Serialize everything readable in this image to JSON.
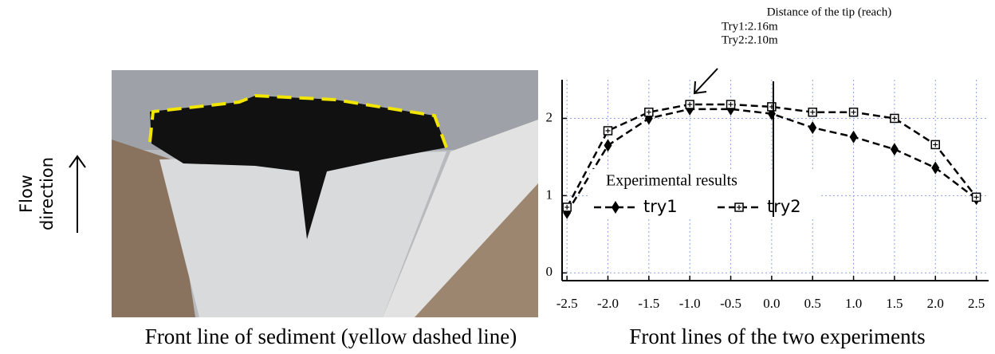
{
  "chart_data": {
    "type": "line",
    "annotation": [
      "Distance of the tip (reach)",
      "Try1:2.16m",
      "Try2:2.10m"
    ],
    "legend_title": "Experimental results",
    "x": [
      -2.5,
      -2.0,
      -1.5,
      -1.0,
      -0.5,
      0.0,
      0.5,
      1.0,
      1.5,
      2.0,
      2.5
    ],
    "series": [
      {
        "name": "try1",
        "color": "#000000",
        "values": [
          0.78,
          1.65,
          2.0,
          2.12,
          2.12,
          2.06,
          1.88,
          1.76,
          1.6,
          1.36,
          0.96
        ]
      },
      {
        "name": "try2",
        "color": "#000000",
        "values": [
          0.85,
          1.84,
          2.08,
          2.18,
          2.18,
          2.15,
          2.08,
          2.08,
          2.0,
          1.66,
          0.98
        ]
      }
    ],
    "xlim": [
      -2.56,
      2.65
    ],
    "ylim": [
      -0.1,
      2.5
    ],
    "xticks": [
      -2.5,
      {
        "value": -2.0,
        "label": "-2.0"
      },
      -1.5,
      {
        "value": -1.0,
        "label": "-1.0"
      },
      -0.5,
      {
        "value": 0.0,
        "label": "0.0"
      },
      0.5,
      {
        "value": 1.0,
        "label": "1.0"
      },
      1.5,
      {
        "value": 2.0,
        "label": "2.0"
      },
      2.5
    ],
    "yticks": [
      0,
      1,
      2
    ],
    "grid": true,
    "photo_caption": "Front line of sediment (yellow dashed line)",
    "chart_caption": "Front lines of the two experiments",
    "flow_label": [
      "Flow",
      "direction"
    ]
  }
}
